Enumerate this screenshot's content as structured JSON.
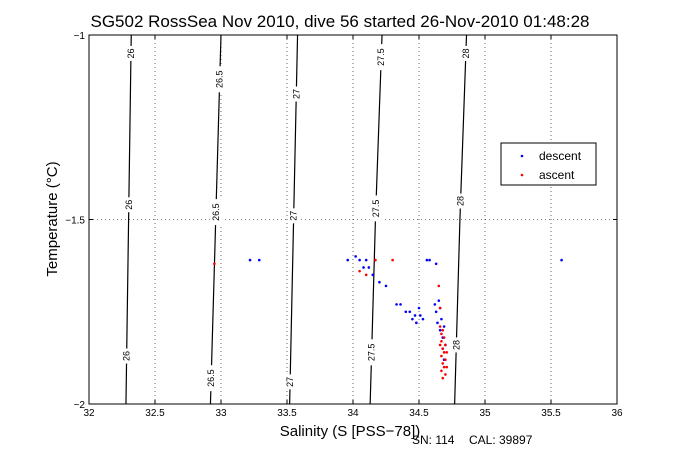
{
  "chart_data": {
    "type": "scatter",
    "title": "SG502 RossSea Nov 2010, dive 56 started 26-Nov-2010 01:48:28",
    "xlabel": "Salinity (S [PSS−78])",
    "ylabel": "Temperature (°C)",
    "xlim": [
      32,
      36
    ],
    "ylim": [
      -2,
      -1
    ],
    "xticks": [
      32,
      32.5,
      33,
      33.5,
      34,
      34.5,
      35,
      35.5,
      36
    ],
    "xtick_labels": [
      "32",
      "32.5",
      "33",
      "33.5",
      "34",
      "34.5",
      "35",
      "35.5",
      "36"
    ],
    "yticks": [
      -2,
      -1.5,
      -1
    ],
    "ytick_labels": [
      "−2",
      "−1.5",
      "−1"
    ],
    "grid": true,
    "legend_position": "upper-right",
    "series": [
      {
        "name": "descent",
        "color": "#0000ff",
        "marker": ".",
        "points": [
          [
            33.22,
            -1.61
          ],
          [
            33.29,
            -1.61
          ],
          [
            33.96,
            -1.61
          ],
          [
            34.02,
            -1.6
          ],
          [
            34.05,
            -1.61
          ],
          [
            34.08,
            -1.63
          ],
          [
            34.1,
            -1.61
          ],
          [
            34.12,
            -1.63
          ],
          [
            34.15,
            -1.65
          ],
          [
            34.2,
            -1.67
          ],
          [
            34.25,
            -1.68
          ],
          [
            34.33,
            -1.73
          ],
          [
            34.36,
            -1.73
          ],
          [
            34.4,
            -1.75
          ],
          [
            34.43,
            -1.75
          ],
          [
            34.45,
            -1.77
          ],
          [
            34.47,
            -1.76
          ],
          [
            34.48,
            -1.78
          ],
          [
            34.5,
            -1.74
          ],
          [
            34.51,
            -1.76
          ],
          [
            34.53,
            -1.77
          ],
          [
            34.56,
            -1.61
          ],
          [
            34.58,
            -1.61
          ],
          [
            34.62,
            -1.73
          ],
          [
            34.63,
            -1.75
          ],
          [
            34.63,
            -1.62
          ],
          [
            34.64,
            -1.78
          ],
          [
            34.65,
            -1.72
          ],
          [
            34.66,
            -1.8
          ],
          [
            34.66,
            -1.74
          ],
          [
            34.67,
            -1.77
          ],
          [
            34.68,
            -1.85
          ],
          [
            34.68,
            -1.82
          ],
          [
            34.69,
            -1.88
          ],
          [
            34.69,
            -1.79
          ],
          [
            34.7,
            -1.84
          ],
          [
            35.58,
            -1.61
          ]
        ]
      },
      {
        "name": "ascent",
        "color": "#ff0000",
        "marker": ".",
        "points": [
          [
            32.95,
            -1.62
          ],
          [
            34.05,
            -1.64
          ],
          [
            34.1,
            -1.65
          ],
          [
            34.17,
            -1.61
          ],
          [
            34.3,
            -1.61
          ],
          [
            34.65,
            -1.68
          ],
          [
            34.66,
            -1.74
          ],
          [
            34.66,
            -1.79
          ],
          [
            34.67,
            -1.81
          ],
          [
            34.67,
            -1.83
          ],
          [
            34.67,
            -1.87
          ],
          [
            34.67,
            -1.91
          ],
          [
            34.68,
            -1.85
          ],
          [
            34.68,
            -1.89
          ],
          [
            34.68,
            -1.93
          ],
          [
            34.69,
            -1.82
          ],
          [
            34.69,
            -1.86
          ],
          [
            34.69,
            -1.9
          ],
          [
            34.7,
            -1.84
          ],
          [
            34.7,
            -1.88
          ],
          [
            34.71,
            -1.86
          ],
          [
            34.71,
            -1.9
          ],
          [
            34.66,
            -1.84
          ],
          [
            34.68,
            -1.8
          ],
          [
            34.7,
            -1.92
          ]
        ]
      }
    ],
    "contours": [
      {
        "label": "26",
        "line": [
          [
            32.28,
            -2
          ],
          [
            32.3,
            -1.5
          ],
          [
            32.32,
            -1
          ]
        ],
        "label_t": [
          -1.87,
          -1.46,
          -1.05
        ]
      },
      {
        "label": "26.5",
        "line": [
          [
            32.92,
            -2
          ],
          [
            32.96,
            -1.5
          ],
          [
            33.0,
            -1
          ]
        ],
        "label_t": [
          -1.93,
          -1.48,
          -1.12
        ]
      },
      {
        "label": "27",
        "line": [
          [
            33.52,
            -2
          ],
          [
            33.55,
            -1.5
          ],
          [
            33.58,
            -1
          ]
        ],
        "label_t": [
          -1.94,
          -1.49,
          -1.16
        ]
      },
      {
        "label": "27.5",
        "line": [
          [
            34.13,
            -2
          ],
          [
            34.17,
            -1.5
          ],
          [
            34.22,
            -1
          ]
        ],
        "label_t": [
          -1.86,
          -1.47,
          -1.06
        ]
      },
      {
        "label": "28",
        "line": [
          [
            34.77,
            -2
          ],
          [
            34.81,
            -1.5
          ],
          [
            34.86,
            -1
          ]
        ],
        "label_t": [
          -1.84,
          -1.45,
          -1.05
        ]
      }
    ]
  },
  "footer": {
    "serial": "SN: 114",
    "calibration": "CAL: 39897"
  }
}
